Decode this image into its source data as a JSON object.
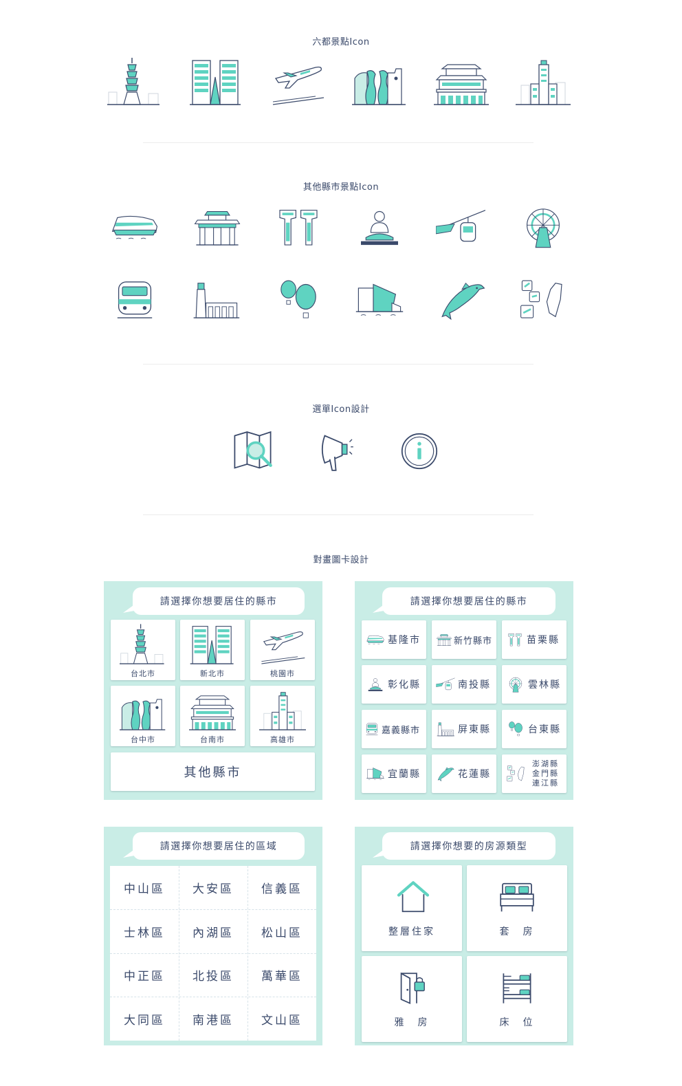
{
  "colors": {
    "teal": "#5fd3c1",
    "navy": "#3b4a6b",
    "panel": "#c9ede6"
  },
  "sections": {
    "six_cities": "六都景點Icon",
    "other_counties": "其他縣市景點Icon",
    "menu_icons": "選單Icon設計",
    "dialog_cards": "對畫圖卡設計"
  },
  "card1": {
    "bubble": "請選擇你想要居住的縣市",
    "cities": [
      "台北市",
      "新北市",
      "桃園市",
      "台中市",
      "台南市",
      "高雄市"
    ],
    "other": "其他縣市"
  },
  "card2": {
    "bubble": "請選擇你想要居住的縣市",
    "counties": [
      "基隆市",
      "新竹縣市",
      "苗栗縣",
      "彰化縣",
      "南投縣",
      "雲林縣",
      "嘉義縣市",
      "屏東縣",
      "台東縣",
      "宜蘭縣",
      "花蓮縣"
    ],
    "islands": [
      "澎湖縣",
      "金門縣",
      "連江縣"
    ]
  },
  "card3": {
    "bubble": "請選擇你想要居住的區域",
    "districts": [
      "中山區",
      "大安區",
      "信義區",
      "士林區",
      "內湖區",
      "松山區",
      "中正區",
      "北投區",
      "萬華區",
      "大同區",
      "南港區",
      "文山區"
    ]
  },
  "card4": {
    "bubble": "請選擇你想要的房源類型",
    "types": [
      "整層住家",
      "套　房",
      "雅　房",
      "床　位"
    ]
  }
}
